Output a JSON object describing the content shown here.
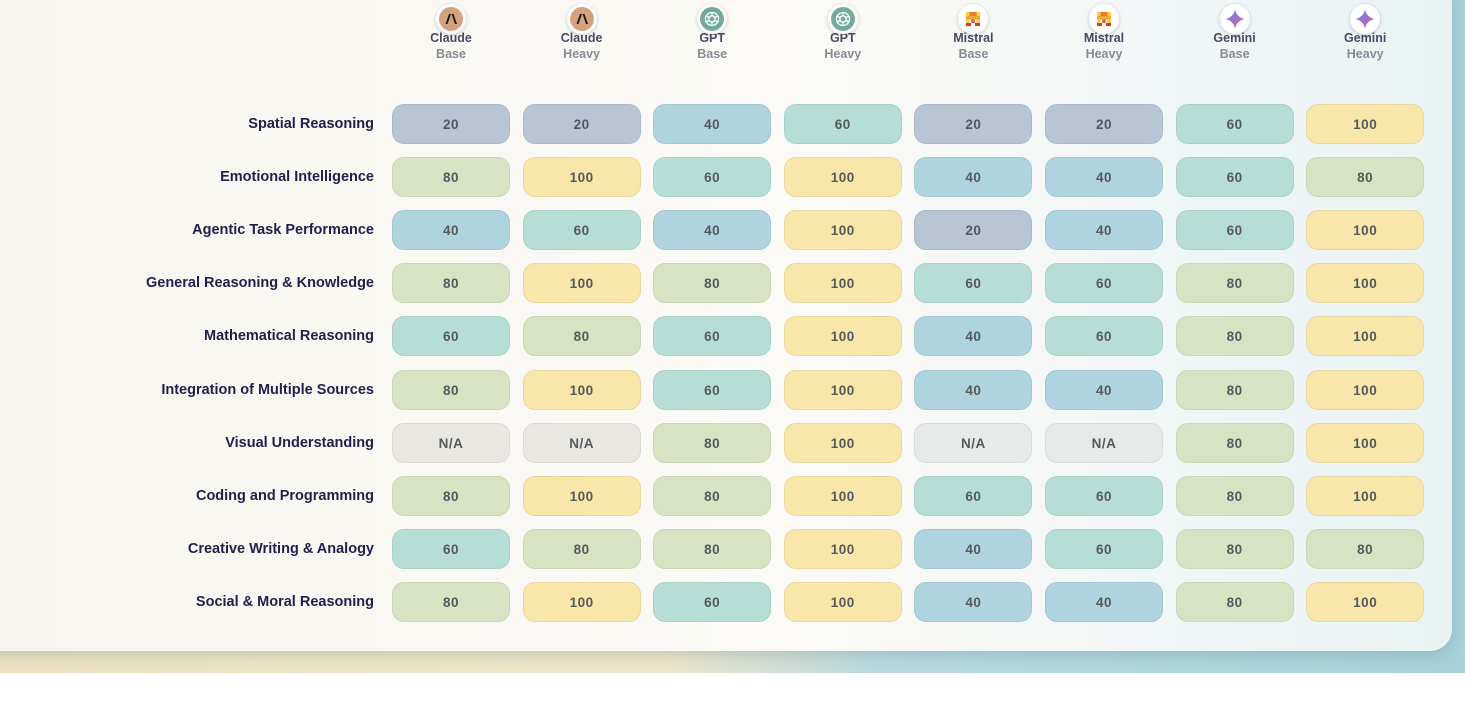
{
  "colors": {
    "score_20": "#b7c5d5",
    "score_40": "#b0d4df",
    "score_60": "#b6ddd6",
    "score_80": "#d8e3c3",
    "score_100": "#f8e6ab",
    "na_claude": "#e8e7e2",
    "na_mistral": "#e6ebea"
  },
  "chart_data": {
    "type": "table",
    "columns": [
      {
        "model": "Claude",
        "variant": "Base",
        "icon": "anthropic-icon"
      },
      {
        "model": "Claude",
        "variant": "Heavy",
        "icon": "anthropic-icon"
      },
      {
        "model": "GPT",
        "variant": "Base",
        "icon": "openai-icon"
      },
      {
        "model": "GPT",
        "variant": "Heavy",
        "icon": "openai-icon"
      },
      {
        "model": "Mistral",
        "variant": "Base",
        "icon": "mistral-icon"
      },
      {
        "model": "Mistral",
        "variant": "Heavy",
        "icon": "mistral-icon"
      },
      {
        "model": "Gemini",
        "variant": "Base",
        "icon": "gemini-icon"
      },
      {
        "model": "Gemini",
        "variant": "Heavy",
        "icon": "gemini-icon"
      }
    ],
    "rows": [
      {
        "label": "Spatial Reasoning",
        "values": [
          "20",
          "20",
          "40",
          "60",
          "20",
          "20",
          "60",
          "100"
        ]
      },
      {
        "label": "Emotional Intelligence",
        "values": [
          "80",
          "100",
          "60",
          "100",
          "40",
          "40",
          "60",
          "80"
        ]
      },
      {
        "label": "Agentic Task Performance",
        "values": [
          "40",
          "60",
          "40",
          "100",
          "20",
          "40",
          "60",
          "100"
        ]
      },
      {
        "label": "General Reasoning & Knowledge",
        "values": [
          "80",
          "100",
          "80",
          "100",
          "60",
          "60",
          "80",
          "100"
        ]
      },
      {
        "label": "Mathematical Reasoning",
        "values": [
          "60",
          "80",
          "60",
          "100",
          "40",
          "60",
          "80",
          "100"
        ]
      },
      {
        "label": "Integration of Multiple Sources",
        "values": [
          "80",
          "100",
          "60",
          "100",
          "40",
          "40",
          "80",
          "100"
        ]
      },
      {
        "label": "Visual Understanding",
        "values": [
          "N/A",
          "N/A",
          "80",
          "100",
          "N/A",
          "N/A",
          "80",
          "100"
        ]
      },
      {
        "label": "Coding and Programming",
        "values": [
          "80",
          "100",
          "80",
          "100",
          "60",
          "60",
          "80",
          "100"
        ]
      },
      {
        "label": "Creative Writing & Analogy",
        "values": [
          "60",
          "80",
          "80",
          "100",
          "40",
          "60",
          "80",
          "80"
        ]
      },
      {
        "label": "Social & Moral Reasoning",
        "values": [
          "80",
          "100",
          "60",
          "100",
          "40",
          "40",
          "80",
          "100"
        ]
      }
    ]
  }
}
